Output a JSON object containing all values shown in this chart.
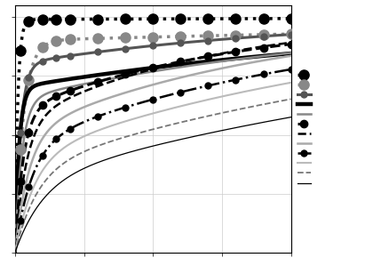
{
  "xlim": [
    0,
    100
  ],
  "ylim": [
    0,
    1.05
  ],
  "grid": true,
  "series": [
    {
      "color": "#000000",
      "linestyle": "dotted",
      "linewidth": 2.5,
      "marker": "o",
      "markersize": 8,
      "tau": [
        1.0,
        200.0
      ],
      "f": [
        0.99,
        0.01
      ]
    },
    {
      "color": "#888888",
      "linestyle": "dotted",
      "linewidth": 2.5,
      "marker": "o",
      "markersize": 8,
      "tau": [
        3.0,
        300.0
      ],
      "f": [
        0.9,
        0.1
      ]
    },
    {
      "color": "#555555",
      "linestyle": "solid",
      "linewidth": 2.2,
      "marker": "o",
      "markersize": 5,
      "tau": [
        2.0,
        100.0
      ],
      "f": [
        0.8,
        0.2
      ]
    },
    {
      "color": "#000000",
      "linestyle": "solid",
      "linewidth": 3.2,
      "marker": null,
      "markersize": 0,
      "tau": [
        1.5,
        150.0
      ],
      "f": [
        0.7,
        0.3
      ]
    },
    {
      "color": "#888888",
      "linestyle": "solid",
      "linewidth": 1.8,
      "marker": null,
      "markersize": 0,
      "tau": [
        2.5,
        120.0
      ],
      "f": [
        0.65,
        0.35
      ]
    },
    {
      "color": "#000000",
      "linestyle": "dashed",
      "linewidth": 2.2,
      "marker": "o",
      "markersize": 6,
      "tau": [
        3.0,
        80.0
      ],
      "f": [
        0.6,
        0.4
      ]
    },
    {
      "color": "#000000",
      "linestyle": "dashed",
      "linewidth": 1.8,
      "marker": null,
      "markersize": 0,
      "tau": [
        4.0,
        70.0
      ],
      "f": [
        0.55,
        0.45
      ]
    },
    {
      "color": "#aaaaaa",
      "linestyle": "solid",
      "linewidth": 1.8,
      "marker": null,
      "markersize": 0,
      "tau": [
        5.0,
        90.0
      ],
      "f": [
        0.5,
        0.5
      ]
    },
    {
      "color": "#000000",
      "linestyle": "dashdot",
      "linewidth": 1.8,
      "marker": "o",
      "markersize": 5,
      "tau": [
        6.0,
        110.0
      ],
      "f": [
        0.45,
        0.55
      ]
    },
    {
      "color": "#bbbbbb",
      "linestyle": "solid",
      "linewidth": 1.5,
      "marker": null,
      "markersize": 0,
      "tau": [
        7.0,
        130.0
      ],
      "f": [
        0.4,
        0.6
      ]
    },
    {
      "color": "#777777",
      "linestyle": "dashed",
      "linewidth": 1.3,
      "marker": null,
      "markersize": 0,
      "tau": [
        8.0,
        160.0
      ],
      "f": [
        0.35,
        0.65
      ]
    },
    {
      "color": "#000000",
      "linestyle": "solid",
      "linewidth": 0.9,
      "marker": null,
      "markersize": 0,
      "tau": [
        10.0,
        200.0
      ],
      "f": [
        0.3,
        0.7
      ]
    }
  ],
  "legend": [
    {
      "color": "#000000",
      "ls": "dotted",
      "lw": 2.5,
      "marker": "o",
      "ms": 8
    },
    {
      "color": "#888888",
      "ls": "dotted",
      "lw": 2.5,
      "marker": "o",
      "ms": 8
    },
    {
      "color": "#555555",
      "ls": "solid",
      "lw": 2.2,
      "marker": "o",
      "ms": 5
    },
    {
      "color": "#000000",
      "ls": "solid",
      "lw": 3.2,
      "marker": null,
      "ms": 0
    },
    {
      "color": "#888888",
      "ls": "solid",
      "lw": 1.8,
      "marker": null,
      "ms": 0
    },
    {
      "color": "#000000",
      "ls": "dashed",
      "lw": 2.2,
      "marker": "o",
      "ms": 6
    },
    {
      "color": "#000000",
      "ls": "dashed",
      "lw": 1.8,
      "marker": null,
      "ms": 0
    },
    {
      "color": "#aaaaaa",
      "ls": "solid",
      "lw": 1.8,
      "marker": null,
      "ms": 0
    },
    {
      "color": "#000000",
      "ls": "dashdot",
      "lw": 1.8,
      "marker": "o",
      "ms": 5
    },
    {
      "color": "#bbbbbb",
      "ls": "solid",
      "lw": 1.5,
      "marker": null,
      "ms": 0
    },
    {
      "color": "#777777",
      "ls": "dashed",
      "lw": 1.3,
      "marker": null,
      "ms": 0
    },
    {
      "color": "#000000",
      "ls": "solid",
      "lw": 0.9,
      "marker": null,
      "ms": 0
    }
  ]
}
